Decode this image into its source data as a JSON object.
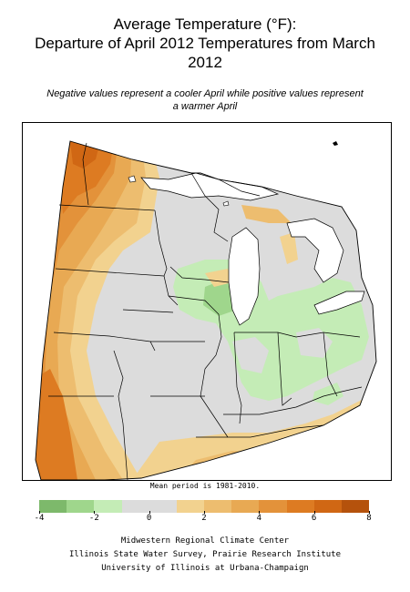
{
  "title": {
    "line1": "Average Temperature (°F):",
    "line2": "Departure of April 2012 Temperatures from March",
    "line3": "2012"
  },
  "subtitle": {
    "line1": "Negative values represent a cooler April while positive values represent",
    "line2": "a warmer April"
  },
  "note": "Mean period is 1981-2010.",
  "legend": {
    "colors": [
      "#7db96b",
      "#9fd68c",
      "#c4ecb6",
      "#dcdcdc",
      "#dcdcdc",
      "#f2d28f",
      "#edbd6f",
      "#e8a953",
      "#e3923a",
      "#dd7b22",
      "#d06714",
      "#b5520c"
    ],
    "ticks": [
      {
        "label": "-4",
        "pos": 0.0
      },
      {
        "label": "-2",
        "pos": 0.1667
      },
      {
        "label": "0",
        "pos": 0.3333
      },
      {
        "label": "2",
        "pos": 0.5
      },
      {
        "label": "4",
        "pos": 0.6667
      },
      {
        "label": "6",
        "pos": 0.8333
      },
      {
        "label": "8",
        "pos": 1.0
      }
    ]
  },
  "credits": {
    "line1": "Midwestern Regional Climate Center",
    "line2": "Illinois State Water Survey, Prairie Research Institute",
    "line3": "University of Illinois at Urbana-Champaign"
  }
}
